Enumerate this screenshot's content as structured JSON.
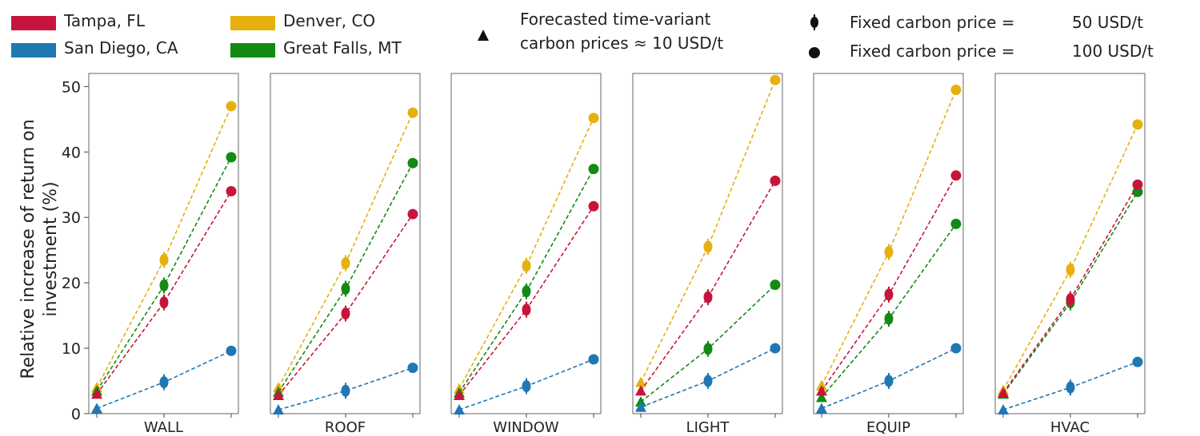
{
  "chart_data": {
    "type": "line",
    "ylabel_line1": "Relative increase of return on",
    "ylabel_line2": "investment (%)",
    "ylim": [
      0,
      52
    ],
    "yticks": [
      "0",
      "10",
      "20",
      "30",
      "40",
      "50"
    ],
    "panels": [
      {
        "label": "WALL",
        "series": {
          "tampa": [
            3,
            17,
            34
          ],
          "sandiego": [
            0.8,
            4.8,
            9.6
          ],
          "denver": [
            4,
            23.5,
            47
          ],
          "greatfalls": [
            3.5,
            19.6,
            39.2
          ]
        }
      },
      {
        "label": "ROOF",
        "series": {
          "tampa": [
            2.8,
            15.3,
            30.5
          ],
          "sandiego": [
            0.6,
            3.5,
            7
          ],
          "denver": [
            4,
            23,
            46
          ],
          "greatfalls": [
            3.3,
            19.1,
            38.3
          ]
        }
      },
      {
        "label": "WINDOW",
        "series": {
          "tampa": [
            2.8,
            15.9,
            31.7
          ],
          "sandiego": [
            0.6,
            4.2,
            8.3
          ],
          "denver": [
            3.8,
            22.6,
            45.2
          ],
          "greatfalls": [
            3.2,
            18.7,
            37.4
          ]
        }
      },
      {
        "label": "LIGHT",
        "series": {
          "tampa": [
            3.5,
            17.8,
            35.6
          ],
          "sandiego": [
            1,
            5,
            10
          ],
          "denver": [
            4.8,
            25.5,
            51
          ],
          "greatfalls": [
            1.8,
            9.9,
            19.7
          ]
        }
      },
      {
        "label": "EQUIP",
        "series": {
          "tampa": [
            3.5,
            18.2,
            36.4
          ],
          "sandiego": [
            0.8,
            5,
            10
          ],
          "denver": [
            4.3,
            24.7,
            49.5
          ],
          "greatfalls": [
            2.5,
            14.5,
            29
          ]
        }
      },
      {
        "label": "HVAC",
        "series": {
          "tampa": [
            3.2,
            17.5,
            35
          ],
          "sandiego": [
            0.6,
            4,
            7.9
          ],
          "denver": [
            3.6,
            22,
            44.2
          ],
          "greatfalls": [
            3,
            17,
            33.9
          ]
        }
      }
    ],
    "series_info": [
      {
        "key": "tampa",
        "name": "Tampa, FL",
        "color": "#c8143c"
      },
      {
        "key": "sandiego",
        "name": "San Diego, CA",
        "color": "#1f77b4"
      },
      {
        "key": "denver",
        "name": "Denver, CO",
        "color": "#e6b00e"
      },
      {
        "key": "greatfalls",
        "name": "Great Falls, MT",
        "color": "#138a13"
      }
    ],
    "marker_legend": {
      "triangle_line1": "Forecasted time-variant",
      "triangle_line2": "carbon prices ≈ 10 USD/t",
      "diamond_label": "Fixed carbon price =",
      "diamond_value": "50 USD/t",
      "circle_label": "Fixed carbon price =",
      "circle_value": "100 USD/t"
    }
  }
}
